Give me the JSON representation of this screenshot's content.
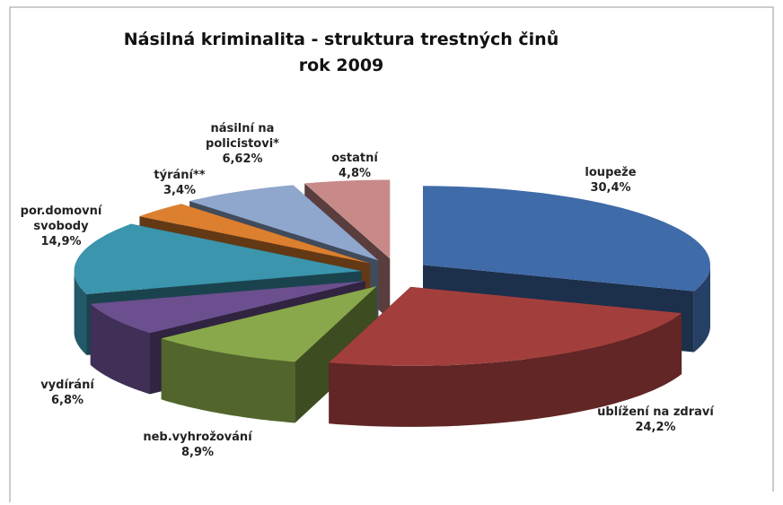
{
  "chart_data": {
    "type": "pie3d",
    "title": "Násilná kriminalita - struktura trestných činů",
    "subtitle": "rok 2009",
    "categories": [
      "loupeže",
      "ublížení na zdraví",
      "neb.vyhrožování",
      "vydírání",
      "por.domovní svobody",
      "týrání**",
      "násilní na policistovi*",
      "ostatní"
    ],
    "values": [
      30.4,
      24.2,
      8.9,
      6.8,
      14.9,
      3.4,
      6.62,
      4.8
    ],
    "value_labels": [
      "30,4%",
      "24,2%",
      "8,9%",
      "6,8%",
      "14,9%",
      "3,4%",
      "6,62%",
      "4,8%"
    ],
    "colors": [
      "#3f6ba8",
      "#a23f3d",
      "#89a84b",
      "#6b4f8f",
      "#3a95ad",
      "#dc7f2f",
      "#8fa6cd",
      "#c88a89"
    ]
  }
}
